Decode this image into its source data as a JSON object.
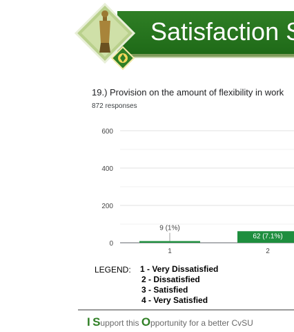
{
  "banner": {
    "title": "Satisfaction S"
  },
  "question": {
    "text": "19.) Provision on the amount of flexibility in work",
    "responses": "872 responses"
  },
  "chart_data": {
    "type": "bar",
    "categories": [
      "1",
      "2"
    ],
    "values": [
      9,
      62
    ],
    "data_labels": [
      "9 (1%)",
      "62 (7.1%)"
    ],
    "yticks": [
      "0",
      "200",
      "400",
      "600"
    ],
    "ylim": [
      0,
      600
    ],
    "title": "",
    "xlabel": "",
    "ylabel": "",
    "bar_color": "#1e8e3e",
    "grid": true
  },
  "legend": {
    "title": "LEGEND:",
    "items": [
      "1  -  Very Dissatisfied",
      "2 -  Dissatisfied",
      "3 -  Satisfied",
      "4 - Very Satisfied"
    ]
  },
  "footer": {
    "l1": "I",
    "s1": "S",
    "t1": "upport this",
    "o1": "O",
    "t2": "pportunity for a better CvSU"
  }
}
